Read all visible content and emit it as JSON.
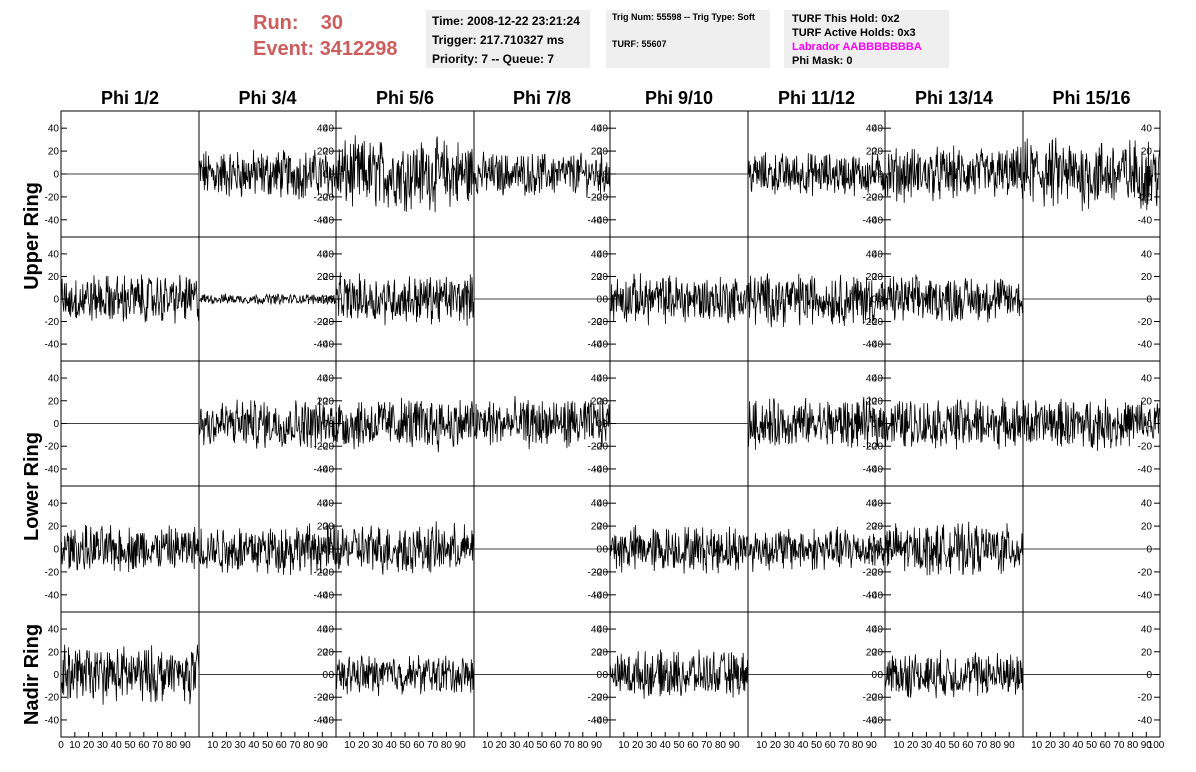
{
  "header": {
    "run_label": "Run:",
    "run_value": "30",
    "event_label": "Event:",
    "event_value": "3412298",
    "run_color": "#cd5c5c",
    "info1": {
      "time": "Time: 2008-12-22 23:21:24",
      "trigger": "Trigger: 217.710327 ms",
      "priority": "Priority: 7 -- Queue: 7"
    },
    "info2": {
      "trig": "Trig Num: 55598 -- Trig Type: Soft",
      "turf": "TURF: 55607"
    },
    "info3": {
      "hold": "TURF This Hold: 0x2",
      "active": "TURF Active Holds: 0x3",
      "labrador": "Labrador AABBBBBBBA",
      "labrador_color": "#ff00ff",
      "mask": "Phi Mask: 0"
    }
  },
  "chart_data": {
    "type": "line",
    "columns": [
      "Phi 1/2",
      "Phi 3/4",
      "Phi 5/6",
      "Phi 7/8",
      "Phi 9/10",
      "Phi 11/12",
      "Phi 13/14",
      "Phi 15/16"
    ],
    "rows": [
      "Upper Ring",
      "Upper Ring",
      "Lower Ring",
      "Lower Ring",
      "Nadir Ring"
    ],
    "row_labels": [
      "Upper Ring",
      "Lower Ring",
      "Nadir Ring"
    ],
    "ylim": [
      -55,
      55
    ],
    "xlim": [
      0,
      100
    ],
    "y_ticks": [
      -40,
      -20,
      0,
      20,
      40
    ],
    "x_ticks": [
      0,
      10,
      20,
      30,
      40,
      50,
      60,
      70,
      80,
      90
    ],
    "x_tick_last": "100",
    "amplitudes": [
      [
        0,
        14,
        20,
        12,
        0,
        12,
        15,
        20
      ],
      [
        14,
        3,
        14,
        0,
        14,
        15,
        13,
        0
      ],
      [
        0,
        14,
        15,
        14,
        0,
        14,
        14,
        14
      ],
      [
        13,
        14,
        14,
        0,
        13,
        12,
        14,
        0
      ],
      [
        16,
        0,
        11,
        0,
        13,
        0,
        13,
        0
      ]
    ]
  }
}
